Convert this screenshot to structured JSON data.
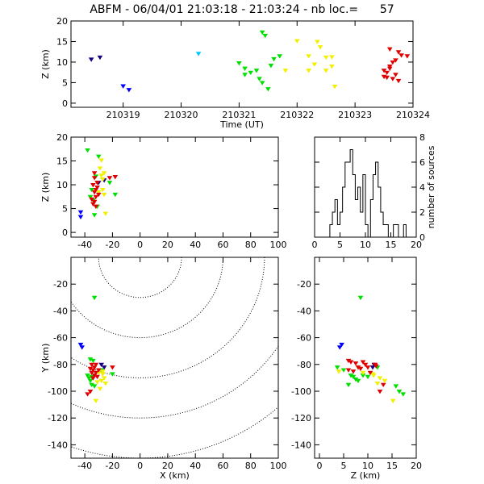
{
  "title": "ABFM - 06/04/01 21:03:18 - 21:03:24 - nb loc.=      57",
  "colors": {
    "axis": "#000000",
    "blue": "#0000ff",
    "navy": "#1a0080",
    "cyan": "#00c8ff",
    "green": "#00e000",
    "yellow": "#f0f000",
    "red": "#e00000"
  },
  "chart_data": [
    {
      "type": "scatter",
      "name": "time-height",
      "xlabel": "Time (UT)",
      "ylabel": "Z (km)",
      "xlim": [
        210318.1,
        210324
      ],
      "ylim": [
        -1,
        20
      ],
      "xticks": [
        210319,
        210320,
        210321,
        210322,
        210323,
        210324
      ],
      "xtick_labels": [
        "210319",
        "210320",
        "210321",
        "210322",
        "210323",
        "210324"
      ],
      "yticks": [
        0,
        5,
        10,
        15,
        20
      ],
      "ytick_labels": [
        "0",
        "5",
        "10",
        "15",
        "20"
      ],
      "series": [
        {
          "color": "#1a0080",
          "points": [
            [
              210318.45,
              10.7
            ],
            [
              210318.6,
              11.2
            ]
          ]
        },
        {
          "color": "#0000ff",
          "points": [
            [
              210319.0,
              4.2
            ],
            [
              210319.1,
              3.3
            ]
          ]
        },
        {
          "color": "#00c8ff",
          "points": [
            [
              210320.3,
              12.1
            ]
          ]
        },
        {
          "color": "#00e000",
          "points": [
            [
              210321.0,
              9.8
            ],
            [
              210321.1,
              7.0
            ],
            [
              210321.1,
              8.5
            ],
            [
              210321.3,
              8.0
            ],
            [
              210321.35,
              6.0
            ],
            [
              210321.4,
              17.3
            ],
            [
              210321.45,
              16.5
            ],
            [
              210321.5,
              3.5
            ],
            [
              210321.6,
              10.8
            ],
            [
              210321.7,
              11.5
            ],
            [
              210321.2,
              7.5
            ],
            [
              210321.4,
              5.0
            ],
            [
              210321.55,
              9.2
            ]
          ]
        },
        {
          "color": "#f0f000",
          "points": [
            [
              210321.8,
              8.0
            ],
            [
              210322.0,
              15.2
            ],
            [
              210322.2,
              11.5
            ],
            [
              210322.3,
              9.5
            ],
            [
              210322.35,
              15.0
            ],
            [
              210322.4,
              13.7
            ],
            [
              210322.5,
              11.2
            ],
            [
              210322.6,
              9.0
            ],
            [
              210322.65,
              4.1
            ],
            [
              210322.2,
              8.0
            ],
            [
              210322.6,
              11.3
            ],
            [
              210322.5,
              8.0
            ]
          ]
        },
        {
          "color": "#e00000",
          "points": [
            [
              210323.5,
              6.5
            ],
            [
              210323.55,
              7.5
            ],
            [
              210323.6,
              8.5
            ],
            [
              210323.6,
              9.0
            ],
            [
              210323.65,
              6.0
            ],
            [
              210323.7,
              10.5
            ],
            [
              210323.75,
              12.5
            ],
            [
              210323.6,
              13.2
            ],
            [
              210323.5,
              8.0
            ],
            [
              210323.7,
              7.0
            ],
            [
              210323.55,
              6.3
            ],
            [
              210323.8,
              11.7
            ],
            [
              210323.65,
              10.0
            ],
            [
              210323.75,
              5.5
            ],
            [
              210323.9,
              11.5
            ]
          ]
        }
      ]
    },
    {
      "type": "scatter",
      "name": "x-height",
      "xlabel": "",
      "ylabel": "Z (km)",
      "xlim": [
        -50,
        100
      ],
      "ylim": [
        -1,
        20
      ],
      "xticks": [
        -40,
        -20,
        0,
        20,
        40,
        60,
        80,
        100
      ],
      "xtick_labels": [
        "-40",
        "-20",
        "0",
        "20",
        "40",
        "60",
        "80",
        "100"
      ],
      "yticks": [
        0,
        5,
        10,
        15,
        20
      ],
      "ytick_labels": [
        "0",
        "5",
        "10",
        "15",
        "20"
      ],
      "series": [
        {
          "color": "#0000ff",
          "points": [
            [
              -43,
              4.3
            ],
            [
              -43,
              3.3
            ]
          ]
        },
        {
          "color": "#1a0080",
          "points": [
            [
              -26,
              11.0
            ],
            [
              -30,
              10.5
            ]
          ]
        },
        {
          "color": "#00e000",
          "points": [
            [
              -38,
              17.3
            ],
            [
              -30,
              16.0
            ],
            [
              -22,
              10.5
            ],
            [
              -36,
              7.5
            ],
            [
              -34,
              6.8
            ],
            [
              -33,
              3.7
            ],
            [
              -18,
              8.0
            ],
            [
              -35,
              9.0
            ],
            [
              -31,
              5.5
            ],
            [
              -32,
              11.8
            ]
          ]
        },
        {
          "color": "#f0f000",
          "points": [
            [
              -28,
              15.2
            ],
            [
              -28,
              12.0
            ],
            [
              -26,
              12.5
            ],
            [
              -27,
              9.0
            ],
            [
              -26,
              8.0
            ],
            [
              -25,
              4.0
            ],
            [
              -29,
              13.5
            ],
            [
              -27,
              11.2
            ],
            [
              -30,
              8.5
            ]
          ]
        },
        {
          "color": "#e00000",
          "points": [
            [
              -34,
              6.0
            ],
            [
              -33,
              6.5
            ],
            [
              -32,
              7.5
            ],
            [
              -33,
              8.5
            ],
            [
              -32,
              9.0
            ],
            [
              -34,
              10.0
            ],
            [
              -31,
              10.5
            ],
            [
              -33,
              11.5
            ],
            [
              -22,
              11.5
            ],
            [
              -18,
              11.7
            ],
            [
              -35,
              7.0
            ],
            [
              -32,
              5.5
            ],
            [
              -30,
              8.0
            ],
            [
              -31,
              9.5
            ],
            [
              -33,
              12.5
            ]
          ]
        }
      ]
    },
    {
      "type": "bar",
      "name": "height-histogram",
      "xlabel": "",
      "ylabel": "number of sources",
      "xlim": [
        0,
        20
      ],
      "ylim": [
        0,
        8
      ],
      "xticks": [
        0,
        5,
        10,
        15,
        20
      ],
      "xtick_labels": [
        "0",
        "5",
        "10",
        "15",
        "20"
      ],
      "yticks": [
        0,
        2,
        4,
        6,
        8
      ],
      "ytick_labels": [
        "0",
        "2",
        "4",
        "6",
        "8"
      ],
      "bin_width": 0.5,
      "bin_start": 3.0,
      "values": [
        1,
        2,
        3,
        1,
        2,
        4,
        6,
        6,
        7,
        5,
        3,
        4,
        2,
        5,
        1,
        0,
        3,
        5,
        6,
        4,
        2,
        1,
        1,
        0,
        0,
        1,
        1,
        0,
        0,
        1
      ]
    },
    {
      "type": "scatter",
      "name": "plan-view",
      "xlabel": "X (km)",
      "ylabel": "Y (km)",
      "xlim": [
        -50,
        100
      ],
      "ylim": [
        -150,
        0
      ],
      "xticks": [
        -40,
        -20,
        0,
        20,
        40,
        60,
        80,
        100
      ],
      "xtick_labels": [
        "-40",
        "-20",
        "0",
        "20",
        "40",
        "60",
        "80",
        "100"
      ],
      "yticks": [
        -20,
        -40,
        -60,
        -80,
        -100,
        -120,
        -140
      ],
      "ytick_labels": [
        "-20",
        "-40",
        "-60",
        "-80",
        "-100",
        "-120",
        "-140"
      ],
      "range_rings_km": [
        30,
        60,
        90,
        120,
        150
      ],
      "series": [
        {
          "color": "#0000ff",
          "points": [
            [
              -43,
              -65
            ],
            [
              -42,
              -67
            ]
          ]
        },
        {
          "color": "#1a0080",
          "points": [
            [
              -26,
              -82
            ],
            [
              -28,
              -80
            ]
          ]
        },
        {
          "color": "#00e000",
          "points": [
            [
              -33,
              -30
            ],
            [
              -36,
              -76
            ],
            [
              -34,
              -77
            ],
            [
              -38,
              -88
            ],
            [
              -37,
              -90
            ],
            [
              -36,
              -92
            ],
            [
              -35,
              -95
            ],
            [
              -33,
              -96
            ],
            [
              -35,
              -89
            ],
            [
              -28,
              -84
            ],
            [
              -20,
              -87
            ]
          ]
        },
        {
          "color": "#f0f000",
          "points": [
            [
              -30,
              -86
            ],
            [
              -27,
              -87
            ],
            [
              -26,
              -90
            ],
            [
              -28,
              -92
            ],
            [
              -25,
              -94
            ],
            [
              -27,
              -85
            ],
            [
              -31,
              -93
            ],
            [
              -29,
              -98
            ],
            [
              -32,
              -107
            ]
          ]
        },
        {
          "color": "#e00000",
          "points": [
            [
              -35,
              -80
            ],
            [
              -33,
              -82
            ],
            [
              -34,
              -84
            ],
            [
              -32,
              -86
            ],
            [
              -30,
              -84
            ],
            [
              -33,
              -88
            ],
            [
              -35,
              -86
            ],
            [
              -36,
              -100
            ],
            [
              -38,
              -102
            ],
            [
              -20,
              -82
            ],
            [
              -32,
              -80
            ],
            [
              -34,
              -90
            ],
            [
              -31,
              -89
            ],
            [
              -36,
              -83
            ]
          ]
        }
      ]
    },
    {
      "type": "scatter",
      "name": "height-y",
      "xlabel": "Z (km)",
      "ylabel": "",
      "xlim": [
        -1,
        20
      ],
      "ylim": [
        -150,
        0
      ],
      "xticks": [
        0,
        5,
        10,
        15,
        20
      ],
      "xtick_labels": [
        "0",
        "5",
        "10",
        "15",
        "20"
      ],
      "yticks": [
        -20,
        -40,
        -60,
        -80,
        -100,
        -120,
        -140
      ],
      "ytick_labels": [
        "-20",
        "-40",
        "-60",
        "-80",
        "-100",
        "-120",
        "-140"
      ],
      "series": [
        {
          "color": "#0000ff",
          "points": [
            [
              4.2,
              -67
            ],
            [
              4.6,
              -65
            ]
          ]
        },
        {
          "color": "#1a0080",
          "points": [
            [
              11.0,
              -82
            ],
            [
              11.3,
              -80
            ]
          ]
        },
        {
          "color": "#00e000",
          "points": [
            [
              8.5,
              -30
            ],
            [
              3.7,
              -82
            ],
            [
              5.0,
              -84
            ],
            [
              6.5,
              -88
            ],
            [
              7.0,
              -89
            ],
            [
              7.5,
              -91
            ],
            [
              8.0,
              -92
            ],
            [
              9.0,
              -88
            ],
            [
              10.0,
              -89
            ],
            [
              12.0,
              -82
            ],
            [
              17.3,
              -102
            ],
            [
              15.8,
              -96
            ],
            [
              16.5,
              -100
            ],
            [
              6.0,
              -95
            ]
          ]
        },
        {
          "color": "#f0f000",
          "points": [
            [
              4.0,
              -85
            ],
            [
              9.0,
              -86
            ],
            [
              11.2,
              -88
            ],
            [
              12.0,
              -94
            ],
            [
              12.5,
              -90
            ],
            [
              13.5,
              -92
            ],
            [
              15.2,
              -107
            ],
            [
              11.0,
              -87
            ],
            [
              8.0,
              -82
            ]
          ]
        },
        {
          "color": "#e00000",
          "points": [
            [
              6.0,
              -77
            ],
            [
              6.5,
              -78
            ],
            [
              7.5,
              -79
            ],
            [
              8.0,
              -82
            ],
            [
              8.5,
              -83
            ],
            [
              9.0,
              -78
            ],
            [
              10.0,
              -82
            ],
            [
              11.5,
              -80
            ],
            [
              6.0,
              -84
            ],
            [
              7.0,
              -85
            ],
            [
              10.5,
              -86
            ],
            [
              12.5,
              -100
            ],
            [
              13.2,
              -95
            ],
            [
              11.7,
              -81
            ],
            [
              9.5,
              -80
            ]
          ]
        }
      ]
    }
  ]
}
